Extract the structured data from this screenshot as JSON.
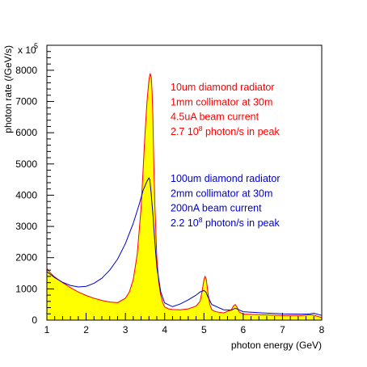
{
  "chart_data": {
    "type": "area",
    "xlabel": "photon energy (GeV)",
    "ylabel": "photon rate (/GeV/s)",
    "y_multiplier_label": "x 10",
    "y_multiplier_exponent": "5",
    "xlim": [
      1,
      8
    ],
    "ylim": [
      0,
      8800
    ],
    "xticks": [
      1,
      2,
      3,
      4,
      5,
      6,
      7,
      8
    ],
    "yticks": [
      0,
      1000,
      2000,
      3000,
      4000,
      5000,
      6000,
      7000,
      8000
    ],
    "grid": false,
    "legend": "none",
    "series": [
      {
        "style": "filled",
        "fill_color": "#ffff00",
        "line_color": "#ff0000",
        "x": [
          1.0,
          1.1,
          1.2,
          1.4,
          1.6,
          1.8,
          2.0,
          2.2,
          2.4,
          2.6,
          2.8,
          3.0,
          3.1,
          3.2,
          3.3,
          3.4,
          3.45,
          3.5,
          3.55,
          3.6,
          3.63,
          3.66,
          3.68,
          3.7,
          3.72,
          3.75,
          3.8,
          3.85,
          3.9,
          3.95,
          4.0,
          4.1,
          4.2,
          4.4,
          4.6,
          4.8,
          4.9,
          4.95,
          5.0,
          5.03,
          5.06,
          5.1,
          5.15,
          5.2,
          5.3,
          5.5,
          5.7,
          5.75,
          5.8,
          5.85,
          5.9,
          6.0,
          6.5,
          7.0,
          7.5,
          7.7,
          7.8,
          7.9,
          8.0
        ],
        "y": [
          1650,
          1500,
          1380,
          1200,
          1040,
          900,
          790,
          700,
          630,
          580,
          560,
          700,
          900,
          1300,
          2100,
          3600,
          4800,
          6000,
          7000,
          7700,
          7900,
          7750,
          7300,
          6500,
          5200,
          3700,
          2000,
          1200,
          800,
          560,
          420,
          360,
          340,
          330,
          360,
          450,
          600,
          900,
          1300,
          1400,
          1300,
          900,
          500,
          330,
          270,
          230,
          330,
          450,
          500,
          400,
          260,
          190,
          170,
          150,
          150,
          170,
          160,
          120,
          80
        ]
      },
      {
        "style": "line",
        "line_color": "#0000cc",
        "x": [
          1.0,
          1.2,
          1.4,
          1.6,
          1.8,
          2.0,
          2.2,
          2.4,
          2.6,
          2.8,
          3.0,
          3.2,
          3.35,
          3.45,
          3.55,
          3.6,
          3.62,
          3.65,
          3.7,
          3.75,
          3.8,
          3.9,
          4.0,
          4.2,
          4.4,
          4.6,
          4.8,
          4.9,
          5.0,
          5.05,
          5.1,
          5.2,
          5.5,
          5.7,
          5.8,
          6.0,
          6.5,
          7.0,
          7.5,
          7.7,
          7.8,
          8.0
        ],
        "y": [
          1550,
          1360,
          1210,
          1110,
          1060,
          1080,
          1180,
          1340,
          1600,
          1950,
          2450,
          3100,
          3700,
          4150,
          4450,
          4550,
          4500,
          4150,
          3400,
          2500,
          1700,
          900,
          550,
          430,
          520,
          650,
          800,
          900,
          950,
          900,
          750,
          500,
          330,
          320,
          380,
          270,
          230,
          200,
          190,
          200,
          220,
          150
        ]
      }
    ],
    "annotations": [
      {
        "color": "#ff0000",
        "lines": [
          {
            "text": "10um diamond radiator"
          },
          {
            "text": "1mm collimator at 30m"
          },
          {
            "text": "4.5uA beam current"
          },
          {
            "text": "2.7 10",
            "sup": "8",
            "tail": " photon/s in peak"
          }
        ]
      },
      {
        "color": "#0000cc",
        "lines": [
          {
            "text": "100um diamond radiator"
          },
          {
            "text": "2mm collimator at 30m"
          },
          {
            "text": "200nA beam current"
          },
          {
            "text": "2.2 10",
            "sup": "8",
            "tail": " photon/s in peak"
          }
        ]
      }
    ]
  }
}
